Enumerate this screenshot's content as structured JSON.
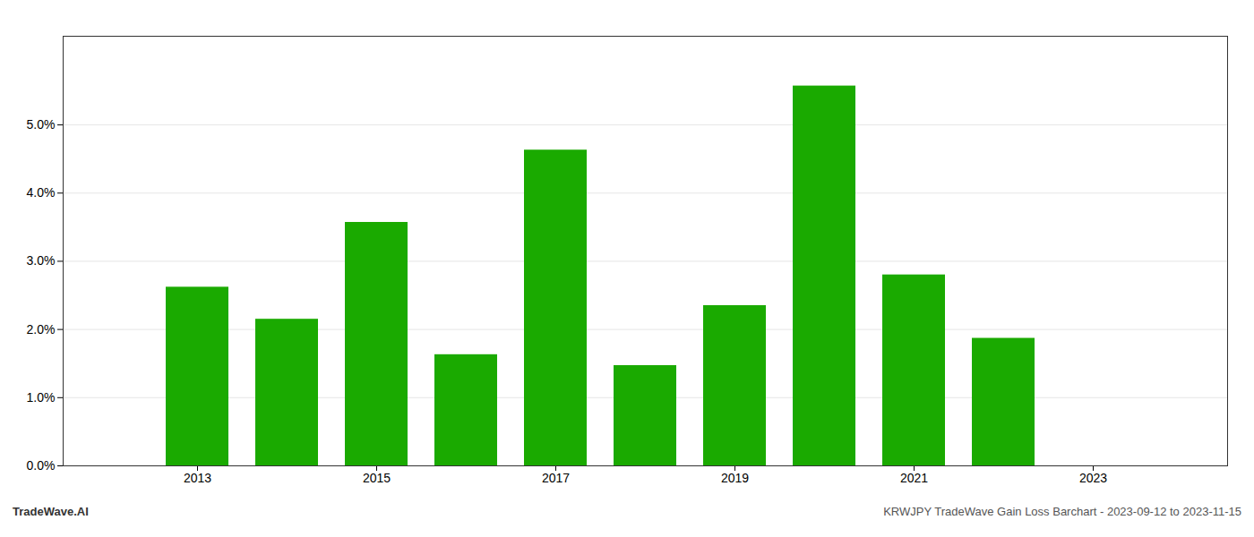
{
  "chart_data": {
    "type": "bar",
    "title": "KRWJPY TradeWave Gain Loss Barchart - 2023-09-12 to 2023-11-15",
    "annotations": [
      "TradeWave.AI"
    ],
    "x": [
      2013,
      2014,
      2015,
      2016,
      2017,
      2018,
      2019,
      2020,
      2021,
      2022
    ],
    "values": [
      0.0262,
      0.0215,
      0.0357,
      0.0163,
      0.0463,
      0.0147,
      0.0235,
      0.0557,
      0.028,
      0.0187
    ],
    "color": "#1aaa00",
    "xlim": [
      2011.5,
      2024.5
    ],
    "xticks": [
      2013,
      2015,
      2017,
      2019,
      2021,
      2023
    ],
    "ylim": [
      0,
      0.063
    ],
    "yticks": [
      {
        "value": 0.0,
        "label": "0.0%"
      },
      {
        "value": 0.01,
        "label": "1.0%"
      },
      {
        "value": 0.02,
        "label": "2.0%"
      },
      {
        "value": 0.03,
        "label": "3.0%"
      },
      {
        "value": 0.04,
        "label": "4.0%"
      },
      {
        "value": 0.05,
        "label": "5.0%"
      }
    ],
    "grid": true
  }
}
